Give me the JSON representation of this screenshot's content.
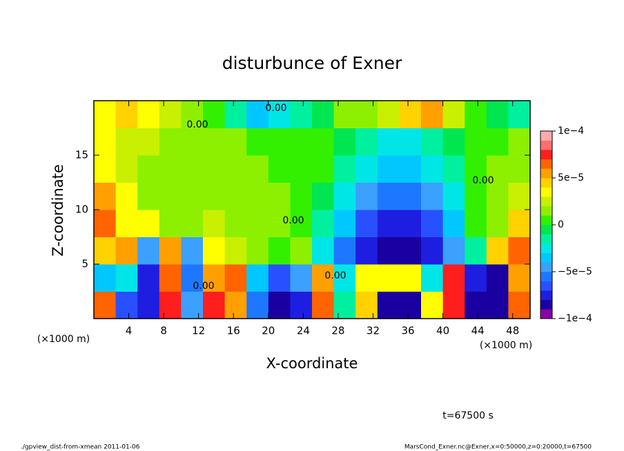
{
  "chart_data": {
    "type": "heatmap",
    "title": "disturbunce of Exner",
    "x_label": "X-coordinate",
    "y_label": "Z-coordinate",
    "x_unit": "(×1000 m)",
    "time_label": "t=67500 s",
    "footer_left": "./gpview_dist-from-xmean  2011-01-06",
    "footer_right": "MarsCond_Exner.nc@Exner,x=0:50000,z=0:20000,t=67500",
    "contour_label": "0.00",
    "xlim": [
      0,
      50
    ],
    "ylim": [
      0,
      20
    ],
    "xticks": [
      4,
      8,
      12,
      16,
      20,
      24,
      28,
      32,
      36,
      40,
      44,
      48
    ],
    "yticks": [
      5,
      10,
      15
    ],
    "x": [
      1.25,
      3.75,
      6.25,
      8.75,
      11.25,
      13.75,
      16.25,
      18.75,
      21.25,
      23.75,
      26.25,
      28.75,
      31.25,
      33.75,
      36.25,
      38.75,
      41.25,
      43.75,
      46.25,
      48.75
    ],
    "y": [
      1.25,
      3.75,
      6.25,
      8.75,
      11.25,
      13.75,
      16.25,
      18.75
    ],
    "z": [
      [
        6e-05,
        -7e-05,
        -8e-05,
        7e-05,
        -5e-05,
        7e-05,
        5e-05,
        -6e-05,
        -9e-05,
        -8e-05,
        6e-05,
        -2e-05,
        4e-05,
        -9e-05,
        -9e-05,
        3e-05,
        7e-05,
        -9e-05,
        -9e-05,
        6e-05
      ],
      [
        -4e-05,
        -3e-05,
        -8e-05,
        6e-05,
        -6e-05,
        5e-05,
        6e-05,
        -4e-05,
        -7e-05,
        -5e-05,
        5e-05,
        -3e-05,
        3e-05,
        3e-05,
        3e-05,
        -3e-05,
        7e-05,
        -8e-05,
        -9e-05,
        5e-05
      ],
      [
        4e-05,
        5e-05,
        -5e-05,
        5e-05,
        -5e-05,
        3e-05,
        2e-05,
        1e-05,
        0,
        1e-05,
        -3e-05,
        -6e-05,
        -8e-05,
        -9e-05,
        -9e-05,
        -8e-05,
        -5e-05,
        -2e-05,
        4e-05,
        6e-05
      ],
      [
        6e-05,
        3e-05,
        3e-05,
        1e-05,
        1e-05,
        2e-05,
        1e-05,
        1e-05,
        1e-05,
        0,
        -2e-05,
        -4e-05,
        -7e-05,
        -8e-05,
        -8e-05,
        -7e-05,
        -4e-05,
        0,
        1e-05,
        4e-05
      ],
      [
        5e-05,
        3e-05,
        1e-05,
        1e-05,
        1e-05,
        1e-05,
        1e-05,
        1e-05,
        1e-05,
        0,
        -1e-05,
        -3e-05,
        -5e-05,
        -6e-05,
        -6e-05,
        -5e-05,
        -3e-05,
        0,
        1e-05,
        2e-05
      ],
      [
        3e-05,
        2e-05,
        1e-05,
        1e-05,
        1e-05,
        1e-05,
        1e-05,
        1e-05,
        0,
        0,
        0,
        -2e-05,
        -3e-05,
        -4e-05,
        -4e-05,
        -3e-05,
        -2e-05,
        0,
        1e-05,
        1e-05
      ],
      [
        3e-05,
        2e-05,
        2e-05,
        1e-05,
        1e-05,
        1e-05,
        1e-05,
        0,
        0,
        0,
        0,
        -1e-05,
        -2e-05,
        -3e-05,
        -3e-05,
        -2e-05,
        -1e-05,
        0,
        0,
        1e-05
      ],
      [
        3e-05,
        4e-05,
        3e-05,
        2e-05,
        1e-05,
        0,
        -2e-05,
        -4e-05,
        -3e-05,
        -2e-05,
        -1e-05,
        1e-05,
        1e-05,
        2e-05,
        4e-05,
        5e-05,
        2e-05,
        0,
        -1e-05,
        -2e-05
      ]
    ],
    "levels": [
      -0.0001,
      -9e-05,
      -8e-05,
      -7e-05,
      -6e-05,
      -5e-05,
      -4e-05,
      -3e-05,
      -2e-05,
      -1e-05,
      0,
      1e-05,
      2e-05,
      3e-05,
      4e-05,
      5e-05,
      6e-05,
      7e-05,
      8e-05,
      9e-05,
      0.0001
    ],
    "colors": [
      "#8a00a0",
      "#1a00a0",
      "#1e1ee0",
      "#2850ff",
      "#1e78ff",
      "#3ca0ff",
      "#00c8ff",
      "#00e6e6",
      "#00f0a0",
      "#00e650",
      "#32f000",
      "#8cf000",
      "#c8f000",
      "#ffff00",
      "#ffd200",
      "#ffa000",
      "#ff6400",
      "#ff1e1e",
      "#ff6e6e",
      "#ffaaaa"
    ],
    "cticks": [
      {
        "value": -0.0001,
        "label": "−1e−4"
      },
      {
        "value": -5e-05,
        "label": "−5e−5"
      },
      0,
      {
        "value": 5e-05,
        "label": "5e−5"
      },
      {
        "value": 0.0001,
        "label": "1e−4"
      }
    ]
  }
}
